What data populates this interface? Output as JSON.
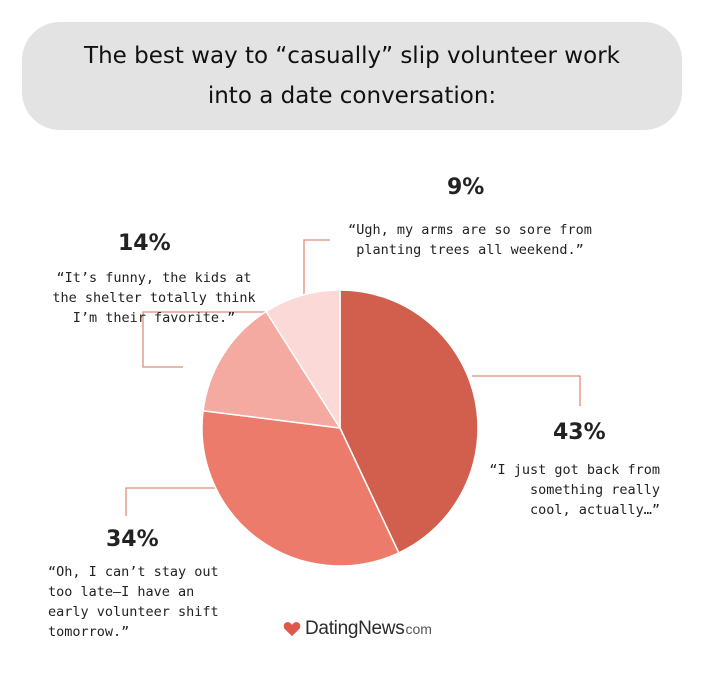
{
  "title": {
    "line1": "The best way to “casually” slip volunteer work",
    "line2": "into a date conversation:"
  },
  "chart_data": {
    "type": "pie",
    "slices": [
      {
        "percent_label": "43%",
        "value": 43,
        "color": "#d25f4d",
        "quote_lines": [
          "“I just got back from",
          "something really",
          "cool, actually…”"
        ]
      },
      {
        "percent_label": "34%",
        "value": 34,
        "color": "#ec7b6b",
        "quote_lines": [
          "“Oh, I can’t stay out",
          "too late—I have an",
          "early volunteer shift",
          "tomorrow.”"
        ]
      },
      {
        "percent_label": "14%",
        "value": 14,
        "color": "#f4aaa0",
        "quote_lines": [
          "“It’s funny, the kids at",
          "the shelter totally think",
          "I’m their favorite.”"
        ]
      },
      {
        "percent_label": "9%",
        "value": 9,
        "color": "#fbd9d6",
        "quote_lines": [
          "“Ugh, my arms are so sore from",
          "planting trees all weekend.”"
        ]
      }
    ],
    "leader_color": "#e08a7c",
    "border_color": "#ffffff"
  },
  "logo": {
    "name": "DatingNews",
    "tld": "com",
    "heart_color": "#e0584a"
  }
}
